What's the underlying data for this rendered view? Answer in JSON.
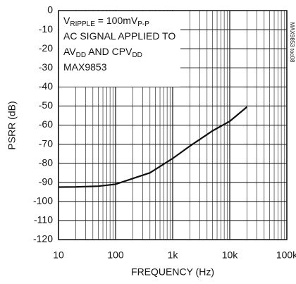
{
  "chart_data": {
    "type": "line",
    "y_label": "PSRR (dB)",
    "x_label": "FREQUENCY (Hz)",
    "x": [
      10,
      20,
      50,
      100,
      200,
      400,
      1000,
      2000,
      5000,
      10000,
      20000
    ],
    "series": [
      {
        "name": "PSRR",
        "color": "#111111",
        "values": [
          -92.5,
          -92.4,
          -92,
          -91,
          -88,
          -85,
          -77.5,
          -71,
          -63,
          -58,
          -50.5
        ]
      }
    ],
    "log_x": true,
    "grid": true,
    "xlim": [
      10,
      100000
    ],
    "xticks": [
      10,
      100,
      {
        "value": 1000,
        "label": "1k"
      },
      {
        "value": 10000,
        "label": "10k"
      },
      {
        "value": 100000,
        "label": "100k"
      }
    ],
    "xminor": [
      20,
      30,
      40,
      50,
      60,
      70,
      80,
      90,
      200,
      300,
      400,
      500,
      600,
      700,
      800,
      900,
      2000,
      3000,
      4000,
      5000,
      6000,
      7000,
      8000,
      9000,
      20000,
      30000,
      40000,
      50000,
      60000,
      70000,
      80000,
      90000
    ],
    "ylim": [
      -120,
      0
    ],
    "yticks": [
      0,
      -10,
      -20,
      -30,
      -40,
      -50,
      -60,
      -70,
      -80,
      -90,
      -100,
      -110,
      -120
    ],
    "annotation": [
      [
        "V",
        "RIPPLE",
        " = 100mV",
        "P-P"
      ],
      [
        "AC SIGNAL APPLIED TO"
      ],
      [
        "AV",
        "DD",
        " AND CPV",
        "DD"
      ],
      [
        "MAX9853"
      ]
    ],
    "side_note": "MAX9853 toc08"
  }
}
